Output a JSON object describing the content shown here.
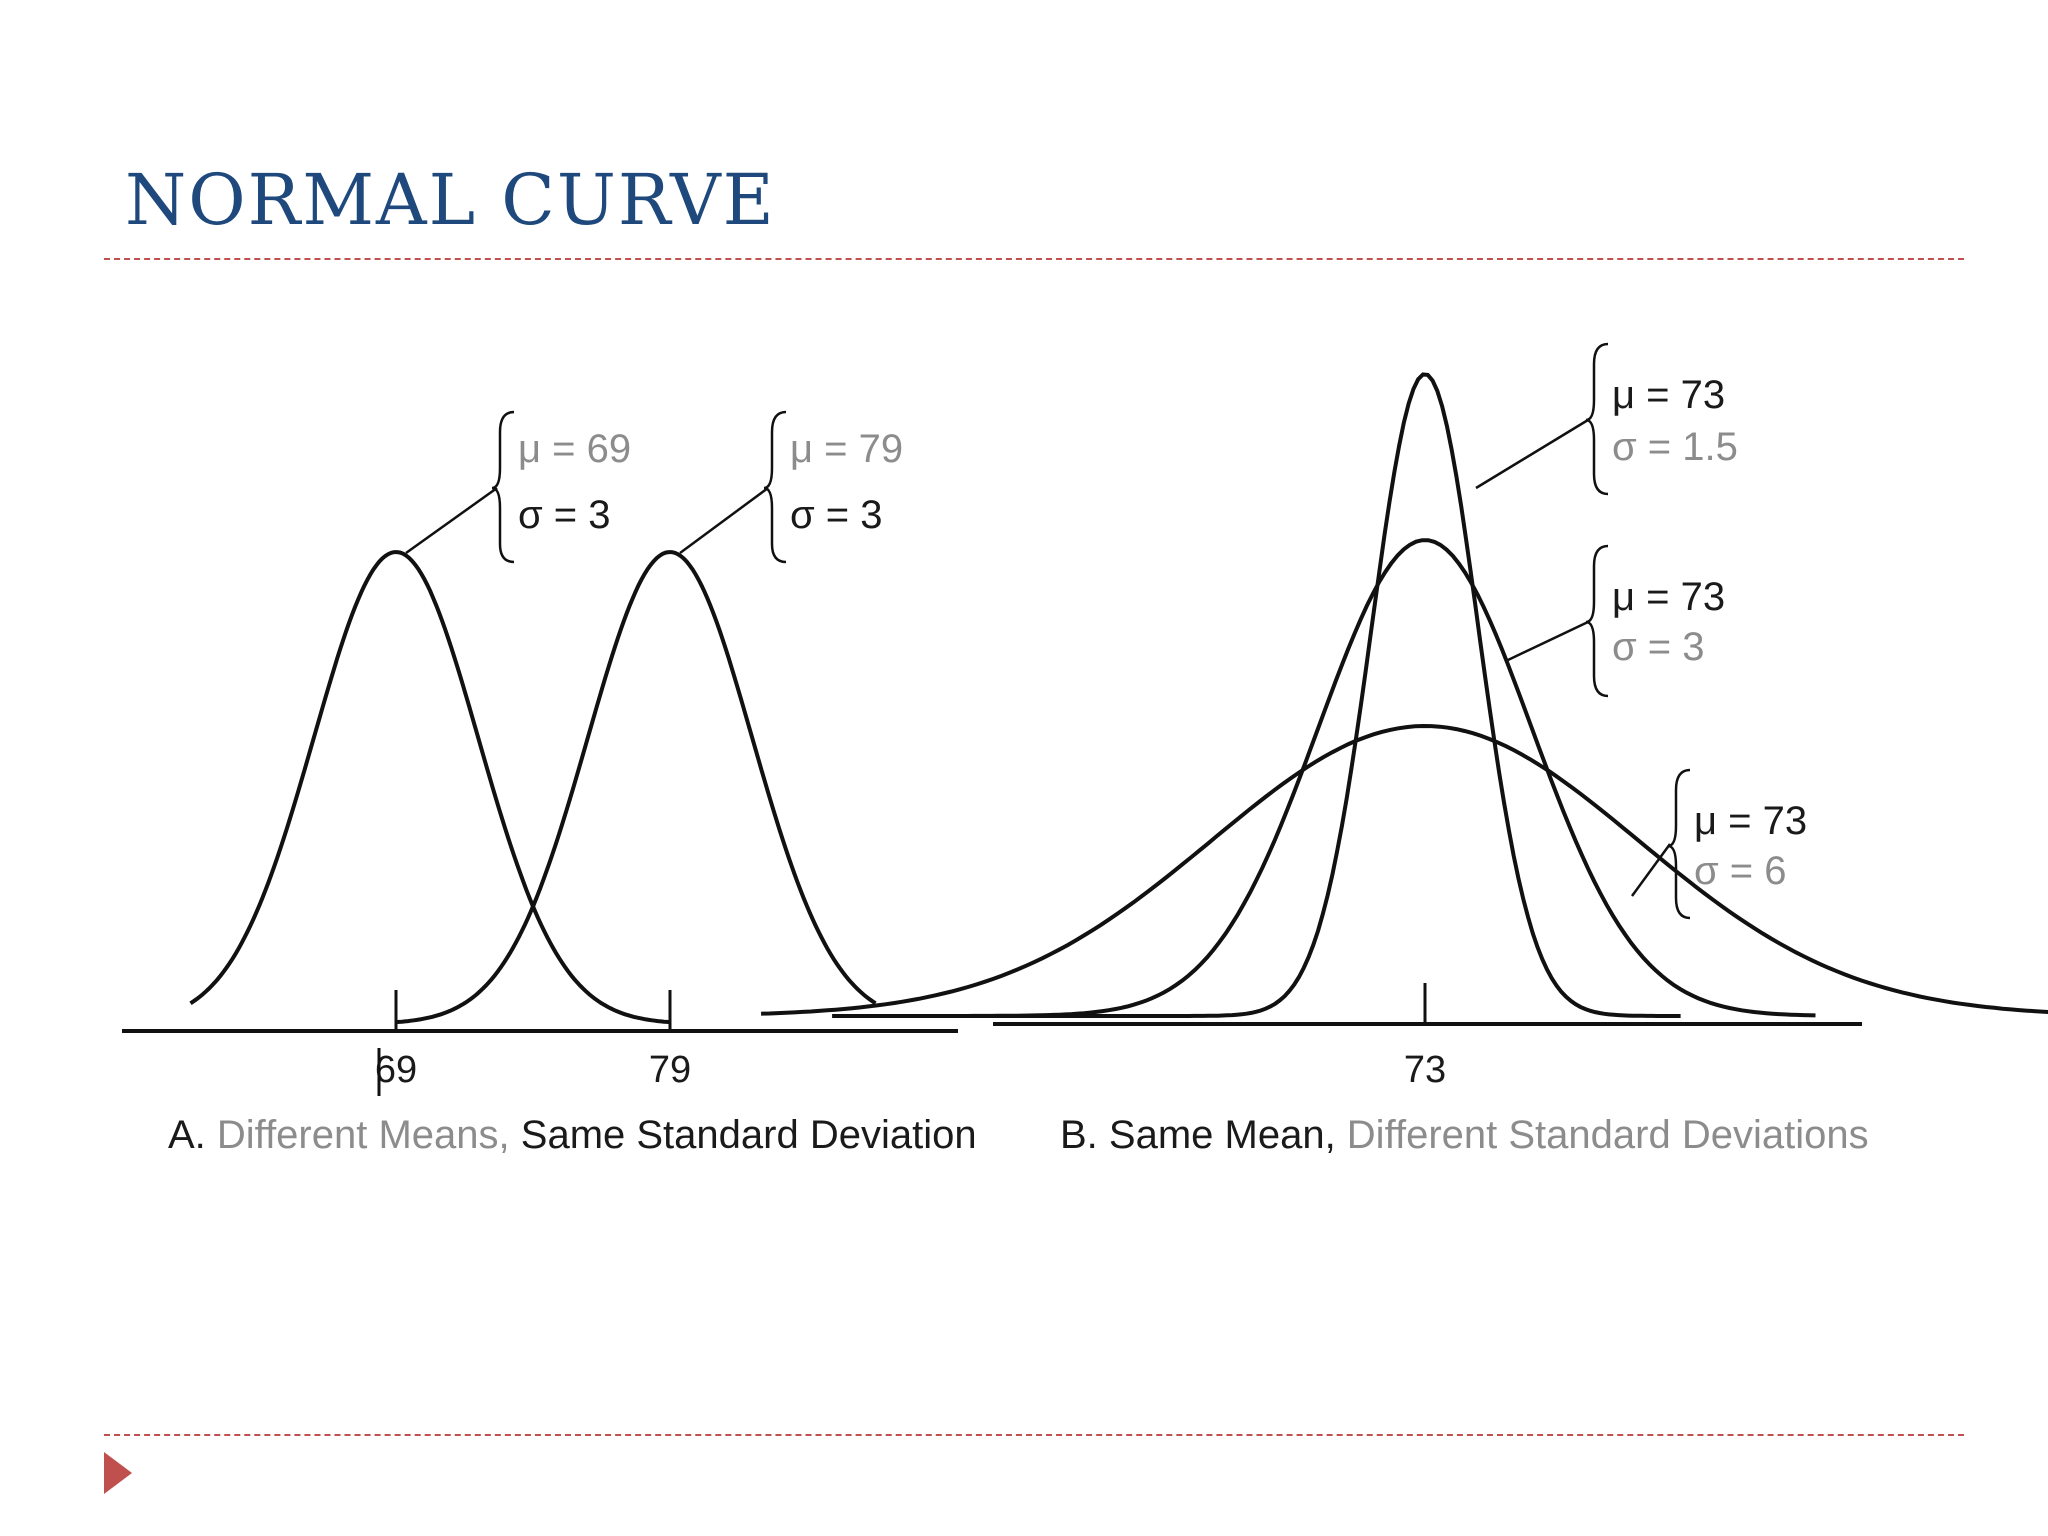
{
  "slide": {
    "title": "NORMAL CURVE",
    "accent_color": "#c0504d",
    "title_color": "#1f497d",
    "bullet_icon": "triangle-right-icon"
  },
  "chart_data": [
    {
      "type": "line",
      "panel": "A",
      "caption_prefix": "A.",
      "caption_highlight": "Different Means,",
      "caption_rest": "Same Standard Deviation",
      "xticks": [
        "69",
        "79"
      ],
      "series": [
        {
          "mu": 69,
          "sigma": 3,
          "mu_label": "μ = 69",
          "sigma_label": "σ = 3"
        },
        {
          "mu": 79,
          "sigma": 3,
          "mu_label": "μ = 79",
          "sigma_label": "σ = 3"
        }
      ]
    },
    {
      "type": "line",
      "panel": "B",
      "caption_prefix": "B. Same Mean,",
      "caption_highlight": "Different Standard Deviations",
      "xticks": [
        "73"
      ],
      "series": [
        {
          "mu": 73,
          "sigma": 1.5,
          "mu_label": "μ = 73",
          "sigma_label": "σ = 1.5"
        },
        {
          "mu": 73,
          "sigma": 3,
          "mu_label": "μ = 73",
          "sigma_label": "σ = 3"
        },
        {
          "mu": 73,
          "sigma": 6,
          "mu_label": "μ = 73",
          "sigma_label": "σ = 6"
        }
      ]
    }
  ]
}
